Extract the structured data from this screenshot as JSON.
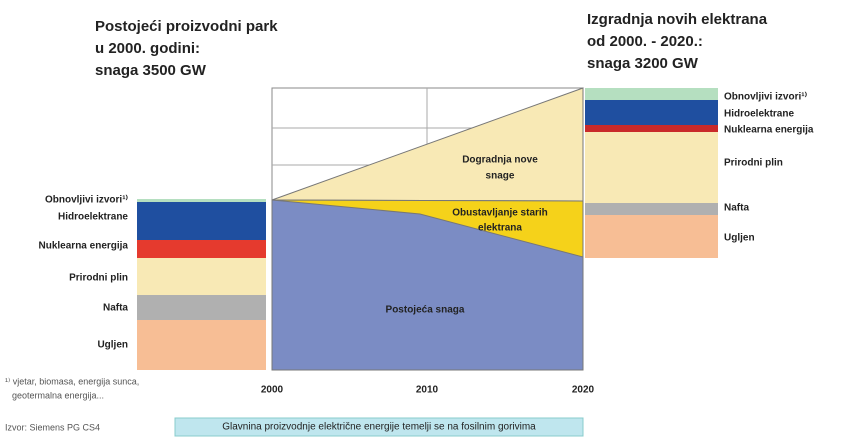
{
  "left_title": [
    "Postojeći proizvodni park",
    "u 2000. godini:",
    "snaga 3500 GW"
  ],
  "right_title": [
    "Izgradnja novih elektrana",
    "od 2000. - 2020.:",
    "snaga 3200 GW"
  ],
  "left_labels": [
    "Obnovljivi izvori¹⁾",
    "Hidroelektrane",
    "Nuklearna energija",
    "Prirodni plin",
    "Nafta",
    "Ugljen"
  ],
  "right_labels": [
    "Obnovljivi izvori¹⁾",
    "Hidroelektrane",
    "Nuklearna energija",
    "Prirodni plin",
    "Nafta",
    "Ugljen"
  ],
  "area_labels": {
    "new": [
      "Dogradnja nove",
      "snage"
    ],
    "stop": [
      "Obustavljanje starih",
      "elektrana"
    ],
    "existing": "Postojeća snaga"
  },
  "x_ticks": [
    "2000",
    "2010",
    "2020"
  ],
  "footnote": [
    "¹⁾ vjetar, biomasa, energija sunca,",
    "geotermalna energija..."
  ],
  "source": "Izvor: Siemens PG CS4",
  "banner": "Glavnina proizvodnje električne energije temelji se na fosilnim gorivima"
}
